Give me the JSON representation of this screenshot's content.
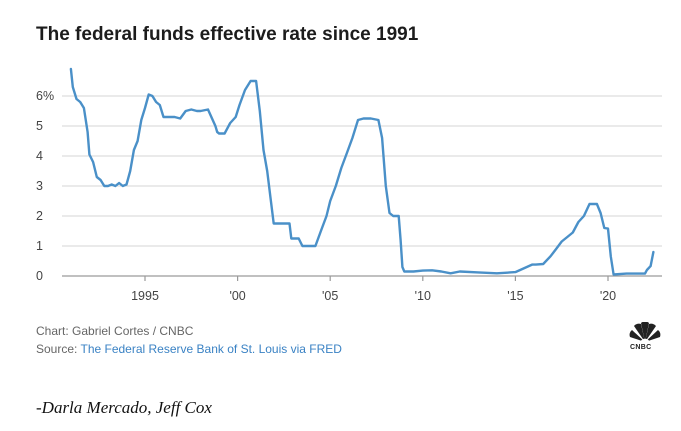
{
  "chart_data": {
    "type": "line",
    "title": "The federal funds effective rate since 1991",
    "xlabel": "",
    "ylabel": "",
    "xlim": [
      1991,
      2022.6
    ],
    "ylim": [
      0,
      6.5
    ],
    "y_ticks": [
      {
        "value": 0,
        "label": "0"
      },
      {
        "value": 1,
        "label": "1"
      },
      {
        "value": 2,
        "label": "2"
      },
      {
        "value": 3,
        "label": "3"
      },
      {
        "value": 4,
        "label": "4"
      },
      {
        "value": 5,
        "label": "5"
      },
      {
        "value": 6,
        "label": "6%"
      }
    ],
    "x_ticks": [
      {
        "value": 1995,
        "label": "1995"
      },
      {
        "value": 2000,
        "label": "'00"
      },
      {
        "value": 2005,
        "label": "'05"
      },
      {
        "value": 2010,
        "label": "'10"
      },
      {
        "value": 2015,
        "label": "'15"
      },
      {
        "value": 2020,
        "label": "'20"
      }
    ],
    "grid": true,
    "series": [
      {
        "name": "Federal funds effective rate",
        "color": "#4a90c8",
        "x": [
          1991.0,
          1991.1,
          1991.3,
          1991.5,
          1991.7,
          1991.9,
          1992.0,
          1992.2,
          1992.4,
          1992.6,
          1992.8,
          1993.0,
          1993.2,
          1993.4,
          1993.6,
          1993.8,
          1994.0,
          1994.2,
          1994.4,
          1994.6,
          1994.8,
          1995.0,
          1995.2,
          1995.4,
          1995.6,
          1995.8,
          1996.0,
          1996.3,
          1996.6,
          1996.9,
          1997.2,
          1997.5,
          1997.8,
          1998.0,
          1998.4,
          1998.8,
          1998.9,
          1999.0,
          1999.3,
          1999.6,
          1999.9,
          2000.1,
          2000.4,
          2000.7,
          2001.0,
          2001.2,
          2001.4,
          2001.6,
          2001.8,
          2001.95,
          2002.2,
          2002.5,
          2002.8,
          2002.9,
          2003.3,
          2003.5,
          2003.7,
          2004.2,
          2004.5,
          2004.8,
          2005.0,
          2005.3,
          2005.6,
          2005.9,
          2006.2,
          2006.5,
          2006.8,
          2007.2,
          2007.6,
          2007.8,
          2008.0,
          2008.2,
          2008.4,
          2008.7,
          2008.8,
          2008.9,
          2009.0,
          2009.5,
          2010.0,
          2010.5,
          2011.0,
          2011.5,
          2012.0,
          2013.0,
          2014.0,
          2015.0,
          2015.9,
          2016.1,
          2016.5,
          2016.9,
          2017.2,
          2017.5,
          2017.8,
          2018.1,
          2018.4,
          2018.7,
          2019.0,
          2019.4,
          2019.6,
          2019.8,
          2020.0,
          2020.15,
          2020.3,
          2021.0,
          2022.0,
          2022.1,
          2022.3,
          2022.45
        ],
        "values": [
          6.9,
          6.3,
          5.9,
          5.8,
          5.6,
          4.8,
          4.05,
          3.8,
          3.3,
          3.2,
          3.0,
          3.0,
          3.05,
          3.0,
          3.1,
          3.0,
          3.05,
          3.5,
          4.2,
          4.5,
          5.2,
          5.6,
          6.05,
          6.0,
          5.8,
          5.7,
          5.3,
          5.3,
          5.3,
          5.25,
          5.5,
          5.55,
          5.5,
          5.5,
          5.55,
          5.0,
          4.8,
          4.75,
          4.75,
          5.1,
          5.3,
          5.7,
          6.2,
          6.5,
          6.5,
          5.5,
          4.2,
          3.5,
          2.5,
          1.75,
          1.75,
          1.75,
          1.75,
          1.25,
          1.25,
          1.0,
          1.0,
          1.0,
          1.5,
          2.0,
          2.5,
          3.0,
          3.6,
          4.1,
          4.6,
          5.2,
          5.25,
          5.25,
          5.2,
          4.6,
          3.0,
          2.1,
          2.0,
          2.0,
          1.2,
          0.3,
          0.15,
          0.15,
          0.18,
          0.19,
          0.15,
          0.09,
          0.15,
          0.12,
          0.09,
          0.13,
          0.38,
          0.38,
          0.4,
          0.66,
          0.9,
          1.15,
          1.3,
          1.45,
          1.8,
          2.0,
          2.4,
          2.4,
          2.1,
          1.6,
          1.58,
          0.65,
          0.05,
          0.08,
          0.08,
          0.2,
          0.33,
          0.8
        ]
      }
    ]
  },
  "credits": {
    "chart_credit": "Chart: Gabriel Cortes / CNBC",
    "source_prefix": "Source: ",
    "source_link": "The Federal Reserve Bank of St. Louis via FRED"
  },
  "logo": {
    "text": "CNBC",
    "icon": "peacock-logo-icon"
  },
  "byline": "-Darla Mercado, Jeff Cox"
}
